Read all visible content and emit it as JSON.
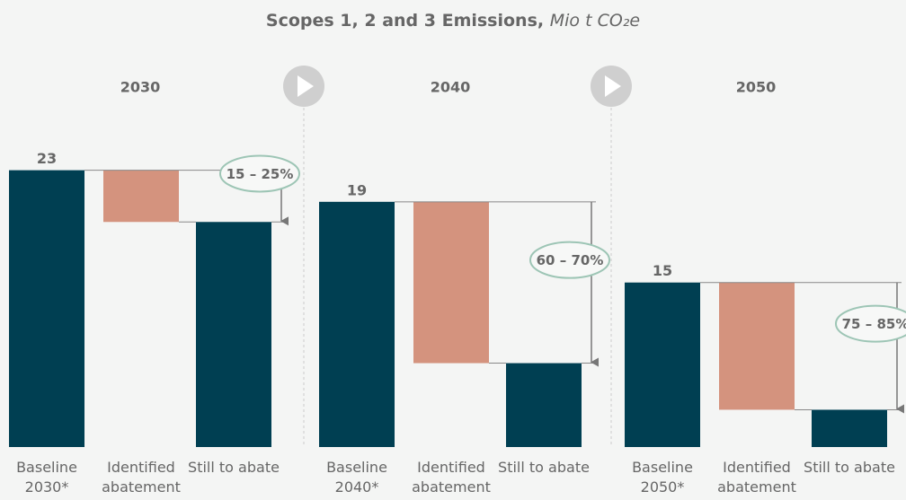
{
  "title": "Scopes 1, 2 and 3 Emissions,",
  "title_unit": "Mio t CO₂e",
  "chart_data": [
    {
      "type": "waterfall",
      "title": "2030",
      "categories": [
        "Baseline 2030*",
        "Identified abatement",
        "Still to abate"
      ],
      "values": [
        23,
        4.3,
        18.7
      ],
      "colors": [
        "#003f52",
        "#d4937e",
        "#003f52"
      ],
      "ylim": [
        0,
        26.7
      ],
      "annotation": "15 – 25%"
    },
    {
      "type": "waterfall",
      "title": "2040",
      "categories": [
        "Baseline 2040*",
        "Identified abatement",
        "Still to abate"
      ],
      "values": [
        19,
        12.5,
        6.5
      ],
      "colors": [
        "#003f52",
        "#d4937e",
        "#003f52"
      ],
      "ylim": [
        0,
        24.9
      ],
      "annotation": "60 – 70%"
    },
    {
      "type": "waterfall",
      "title": "2050",
      "categories": [
        "Baseline 2050*",
        "Identified abatement",
        "Still to abate"
      ],
      "values": [
        15,
        11.6,
        3.4
      ],
      "colors": [
        "#003f52",
        "#d4937e",
        "#003f52"
      ],
      "ylim": [
        0,
        29.3
      ],
      "annotation": "75 – 85%"
    }
  ]
}
